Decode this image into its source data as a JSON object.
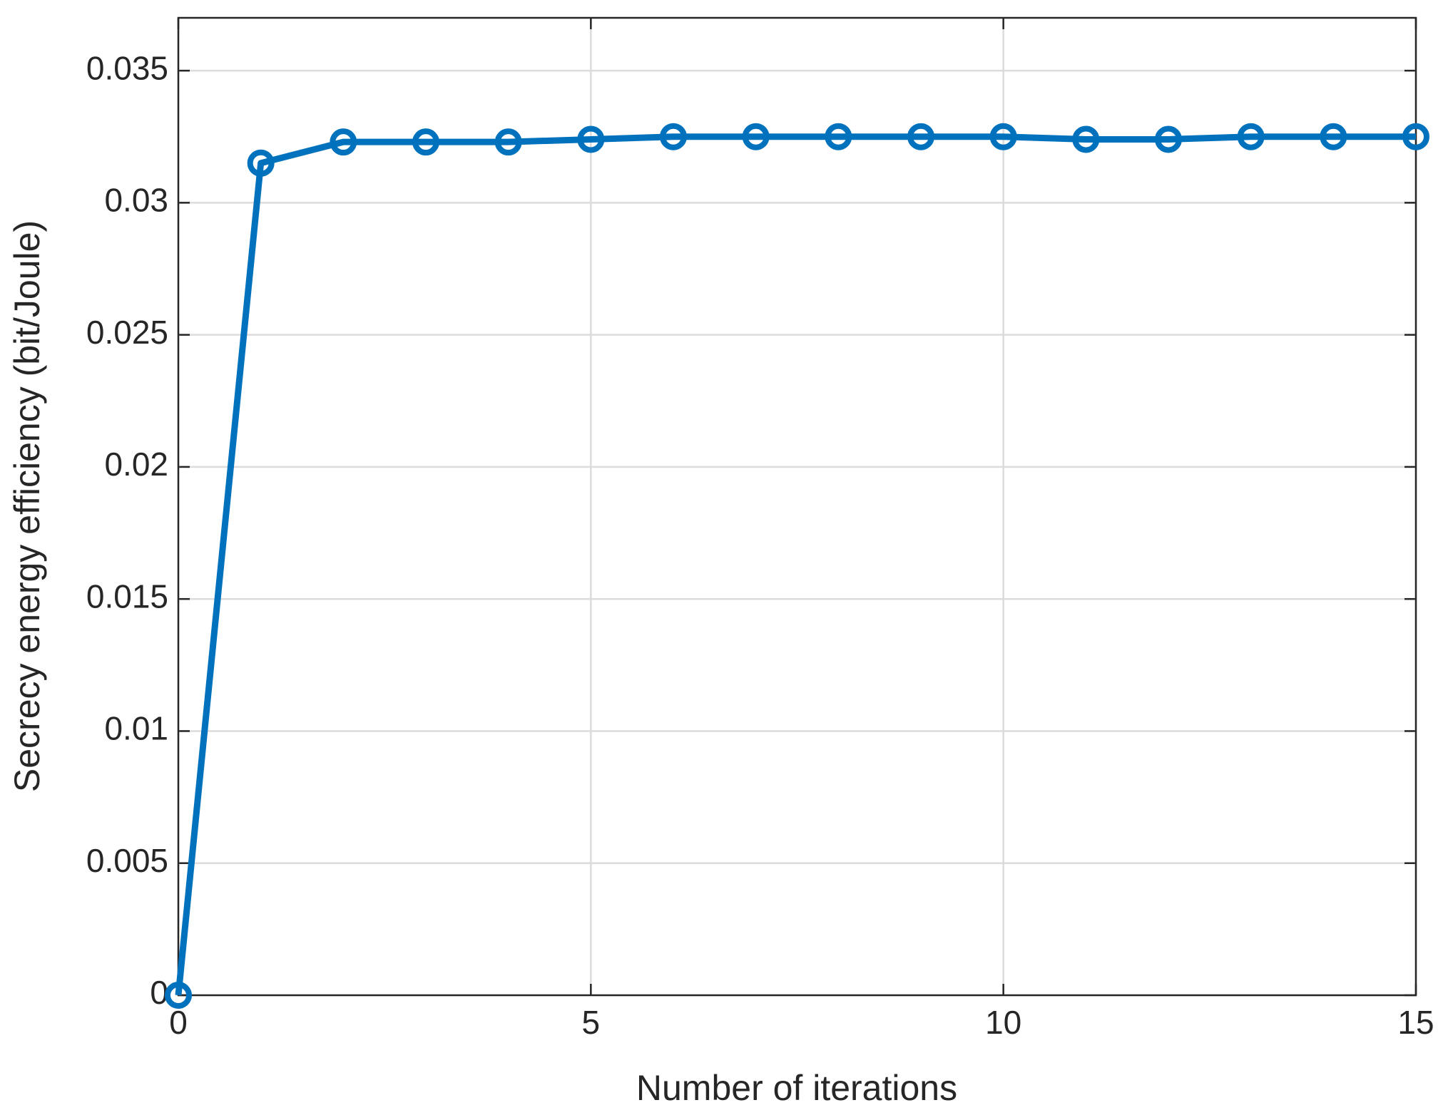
{
  "chart_data": {
    "type": "line",
    "xlabel": "Number of iterations",
    "ylabel": "Secrecy energy efficiency (bit/Joule)",
    "x": [
      0,
      1,
      2,
      3,
      4,
      5,
      6,
      7,
      8,
      9,
      10,
      11,
      12,
      13,
      14,
      15
    ],
    "series": [
      {
        "color": "#0072bd",
        "values": [
          0,
          0.0315,
          0.0323,
          0.0323,
          0.0323,
          0.0324,
          0.0325,
          0.0325,
          0.0325,
          0.0325,
          0.0325,
          0.0324,
          0.0324,
          0.0325,
          0.0325,
          0.0325
        ]
      }
    ],
    "xlim": [
      0,
      15
    ],
    "xticks": [
      0,
      5,
      10,
      15
    ],
    "ylim": [
      0,
      0.037
    ],
    "yticks": [
      0,
      0.005,
      0.01,
      0.015,
      0.02,
      0.025,
      0.03,
      0.035
    ],
    "grid": true
  }
}
